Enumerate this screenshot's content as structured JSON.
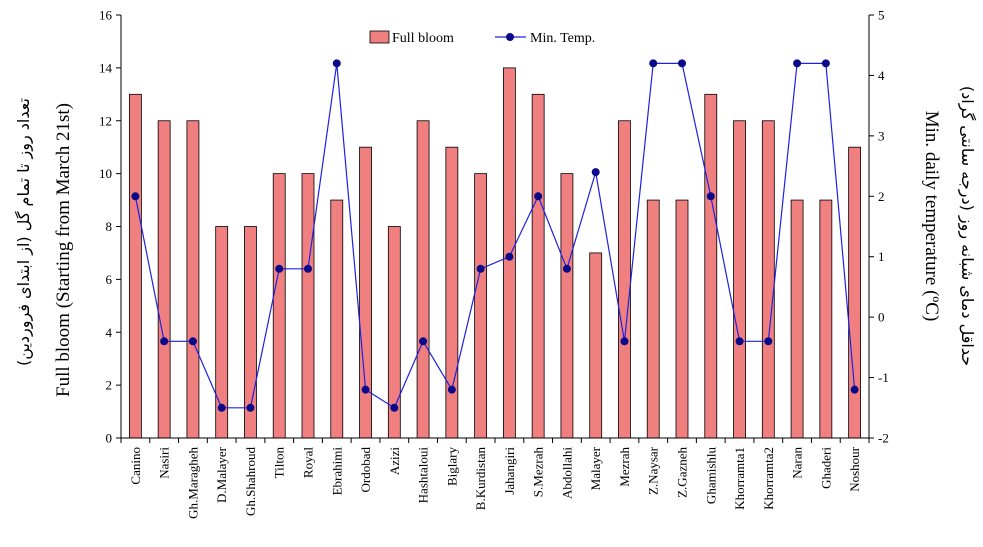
{
  "chart_data": {
    "type": "bar+line",
    "categories": [
      "Canino",
      "Nasiri",
      "Gh.Maragheh",
      "D.Malayer",
      "Gh.Shahroud",
      "Tilton",
      "Royal",
      "Ebrahimi",
      "Ordobad",
      "Azizi",
      "Hashtaloui",
      "Biglary",
      "B.Kurdistan",
      "Jahangiri",
      "S.Mezrah",
      "Abdollahi",
      "Malayer",
      "Mezrah",
      "Z.Naysar",
      "Z.Gazneh",
      "Ghamishlu",
      "Khorramta1",
      "Khorramta2",
      "Naran",
      "Ghaderi",
      "Noshour"
    ],
    "series": [
      {
        "name": "Full bloom",
        "type": "bar",
        "axis": "left",
        "color": "#f08080",
        "values": [
          13,
          12,
          12,
          8,
          8,
          10,
          10,
          9,
          11,
          8,
          12,
          11,
          10,
          14,
          13,
          10,
          7,
          12,
          9,
          9,
          13,
          12,
          12,
          9,
          9,
          11
        ]
      },
      {
        "name": "Min. Temp.",
        "type": "line",
        "axis": "right",
        "color": "#2020e0",
        "marker_color": "#0a0a8a",
        "values": [
          2,
          -0.4,
          -0.4,
          -1.5,
          -1.5,
          0.8,
          0.8,
          4.2,
          -1.2,
          -1.5,
          -0.4,
          -1.2,
          0.8,
          1,
          2,
          0.8,
          2.4,
          -0.4,
          4.2,
          4.2,
          2,
          -0.4,
          -0.4,
          4.2,
          4.2,
          -1.2
        ]
      }
    ],
    "left_axis": {
      "ylim": [
        0,
        16
      ],
      "ticks": [
        "0",
        "2",
        "4",
        "6",
        "8",
        "10",
        "12",
        "14",
        "16"
      ],
      "label": "Full bloom (Starting from March 21st)",
      "label_fa": "تعداد روز تا تمام گل (از ابتدای فروردین)"
    },
    "right_axis": {
      "ylim": [
        -2,
        5
      ],
      "ticks": [
        "-2",
        "-1",
        "0",
        "1",
        "2",
        "3",
        "4",
        "5"
      ],
      "label": "Min. daily temperature (ºC)",
      "label_fa": "حداقل دمای شبانه روز (درجه سانتی گراد)"
    },
    "legend": {
      "placement": "top-center",
      "items": [
        "Full bloom",
        "Min. Temp."
      ]
    },
    "grid": false
  }
}
